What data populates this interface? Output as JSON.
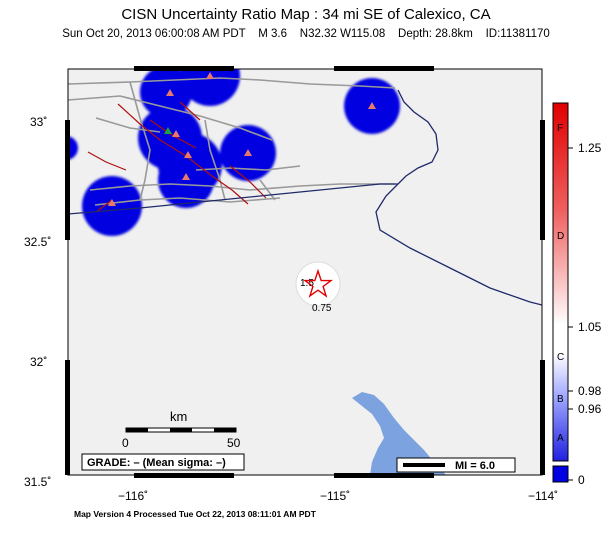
{
  "header": {
    "title": "CISN Uncertainty Ratio Map : 34 mi SE of Calexico, CA",
    "subtitle": "Sun Oct 20, 2013 06:00:08 AM PDT    M 3.6    N32.32 W115.08    Depth: 28.8km    ID:11381170"
  },
  "axes": {
    "lat_labels": [
      "33˚",
      "32.5˚",
      "32˚",
      "31.5˚"
    ],
    "lon_labels": [
      "−116˚",
      "−115˚",
      "−114˚"
    ]
  },
  "scalebar": {
    "unit": "km",
    "min": "0",
    "max": "50"
  },
  "grade_box": {
    "text": "GRADE: – (Mean sigma: –)"
  },
  "mmi_legend": {
    "text": "MI = 6.0"
  },
  "epicenter": {
    "contour_labels": [
      "1.5",
      "0.75"
    ]
  },
  "colorbar": {
    "grade_letters": [
      "F",
      "D",
      "C",
      "B",
      "A"
    ],
    "tick_labels": [
      "1.25",
      "1.05",
      "0.98",
      "0.96",
      "0"
    ]
  },
  "footer": {
    "text": "Map Version 4 Processed Tue Oct 22, 2013 08:11:01 AM PDT"
  },
  "colors": {
    "land": "#f0f0f0",
    "water": "#7ca3e0",
    "station_halo": "#0000e0",
    "station": "#e8786a",
    "border": "#1f2a6b",
    "road": "#999999",
    "fault": "#b01010",
    "epicenter": "#e00000"
  }
}
